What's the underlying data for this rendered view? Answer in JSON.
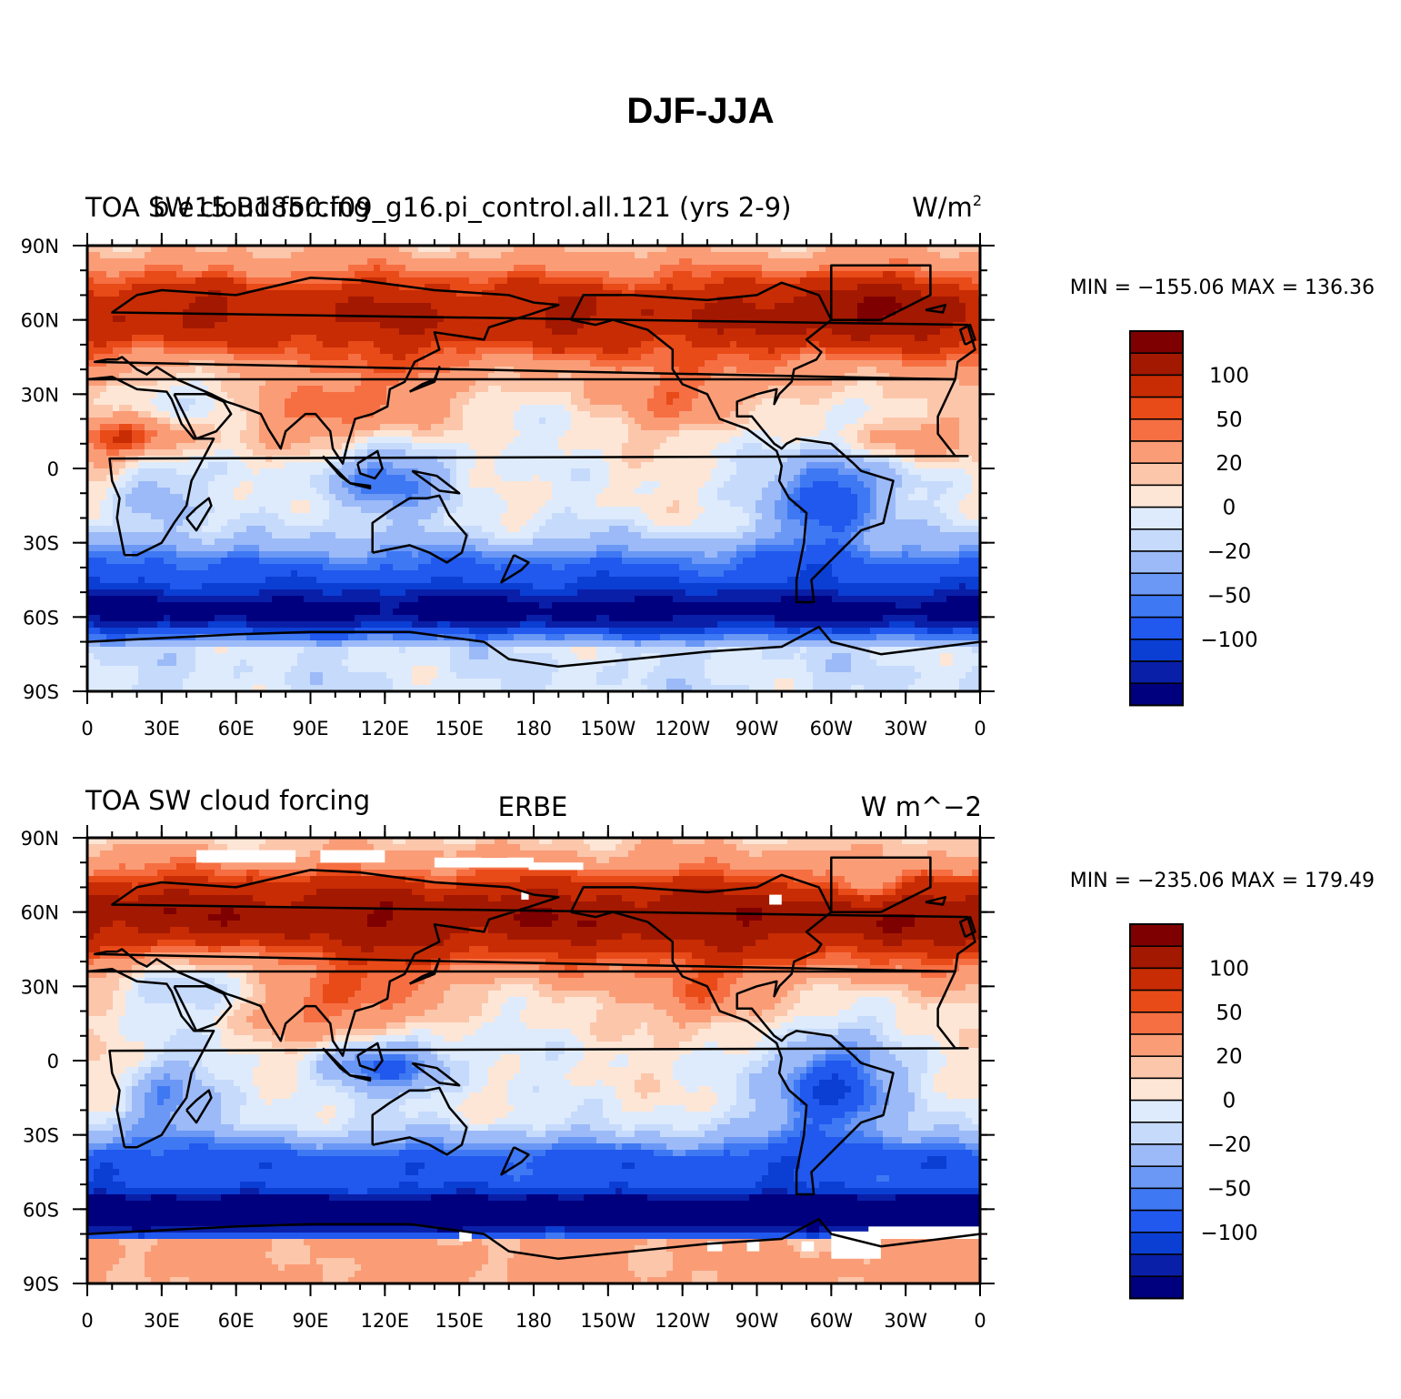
{
  "page": {
    "title": "DJF-JJA"
  },
  "legend_levels": [
    "100",
    "50",
    "20",
    "0",
    "−20",
    "−50",
    "−100"
  ],
  "lat_labels": [
    "90N",
    "60N",
    "30N",
    "0",
    "30S",
    "60S",
    "90S"
  ],
  "lon_labels": [
    "0",
    "30E",
    "60E",
    "90E",
    "120E",
    "150E",
    "180",
    "150W",
    "120W",
    "90W",
    "60W",
    "30W",
    "0"
  ],
  "colors": {
    "scale": [
      "#00007f",
      "#0a1fa8",
      "#0b3ed3",
      "#2158ee",
      "#3f78f3",
      "#6b98f5",
      "#9cbaf8",
      "#c6dafb",
      "#deebfd",
      "#fde6d6",
      "#fcc6ab",
      "#fa9d77",
      "#f66f43",
      "#e84a18",
      "#c82c04",
      "#a31800",
      "#7f0000"
    ],
    "no_data": "#ffffff",
    "coast": "#000000"
  },
  "panels": [
    {
      "id": "model",
      "title_left_1": "TOA SW cloud forcing",
      "title_left_2": "b.e15.B1850.f09_g16.pi_control.all.121 (yrs 2-9)",
      "title_right": "W/m",
      "title_right_sup": "2",
      "stats": "MIN = −155.06 MAX = 136.36"
    },
    {
      "id": "obs",
      "title_left": "TOA SW cloud forcing",
      "title_center": "ERBE",
      "title_right": "W m^−2",
      "stats": "MIN = −235.06 MAX = 179.49"
    }
  ]
}
